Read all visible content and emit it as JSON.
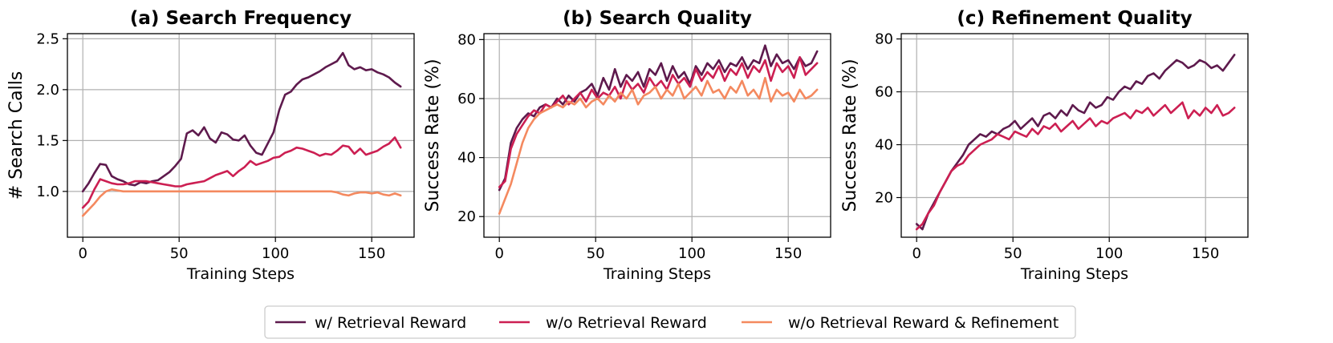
{
  "colors": {
    "w_retrieval": "#5e1a4d",
    "wo_retrieval": "#cc1f52",
    "wo_retrieval_refinement": "#f4895f"
  },
  "legend": [
    {
      "label": "w/ Retrieval Reward",
      "color": "#5e1a4d"
    },
    {
      "label": "w/o Retrieval Reward",
      "color": "#cc1f52"
    },
    {
      "label": "w/o Retrieval Reward & Refinement",
      "color": "#f4895f"
    }
  ],
  "chart_data": [
    {
      "type": "line",
      "title": "(a) Search Frequency",
      "xlabel": "Training Steps",
      "ylabel": "# Search Calls",
      "xlim": [
        -8,
        172
      ],
      "ylim": [
        0.55,
        2.55
      ],
      "xticks": [
        0,
        50,
        100,
        150
      ],
      "yticks": [
        1.0,
        1.5,
        2.0,
        2.5
      ],
      "ytick_labels": [
        "1.0",
        "1.5",
        "2.0",
        "2.5"
      ],
      "grid": true,
      "series": [
        {
          "name": "w/ Retrieval Reward",
          "color": "#5e1a4d",
          "x": [
            0,
            3,
            6,
            9,
            12,
            15,
            18,
            21,
            24,
            27,
            30,
            33,
            36,
            39,
            42,
            45,
            48,
            51,
            54,
            57,
            60,
            63,
            66,
            69,
            72,
            75,
            78,
            81,
            84,
            87,
            90,
            93,
            96,
            99,
            102,
            105,
            108,
            111,
            114,
            117,
            120,
            123,
            126,
            129,
            132,
            135,
            138,
            141,
            144,
            147,
            150,
            153,
            156,
            159,
            162,
            165
          ],
          "y": [
            1.0,
            1.08,
            1.18,
            1.27,
            1.26,
            1.15,
            1.12,
            1.1,
            1.07,
            1.06,
            1.09,
            1.08,
            1.1,
            1.11,
            1.15,
            1.19,
            1.25,
            1.32,
            1.57,
            1.6,
            1.55,
            1.63,
            1.52,
            1.48,
            1.58,
            1.56,
            1.51,
            1.5,
            1.55,
            1.45,
            1.38,
            1.36,
            1.47,
            1.58,
            1.8,
            1.95,
            1.98,
            2.05,
            2.1,
            2.12,
            2.15,
            2.18,
            2.22,
            2.25,
            2.28,
            2.36,
            2.24,
            2.2,
            2.22,
            2.19,
            2.2,
            2.17,
            2.15,
            2.12,
            2.07,
            2.03
          ]
        },
        {
          "name": "w/o Retrieval Reward",
          "color": "#cc1f52",
          "x": [
            0,
            3,
            6,
            9,
            12,
            15,
            18,
            21,
            24,
            27,
            30,
            33,
            36,
            39,
            42,
            45,
            48,
            51,
            54,
            57,
            60,
            63,
            66,
            69,
            72,
            75,
            78,
            81,
            84,
            87,
            90,
            93,
            96,
            99,
            102,
            105,
            108,
            111,
            114,
            117,
            120,
            123,
            126,
            129,
            132,
            135,
            138,
            141,
            144,
            147,
            150,
            153,
            156,
            159,
            162,
            165
          ],
          "y": [
            0.84,
            0.9,
            1.02,
            1.12,
            1.1,
            1.08,
            1.07,
            1.07,
            1.08,
            1.1,
            1.1,
            1.1,
            1.09,
            1.08,
            1.07,
            1.06,
            1.05,
            1.05,
            1.07,
            1.08,
            1.09,
            1.1,
            1.13,
            1.16,
            1.18,
            1.2,
            1.15,
            1.2,
            1.24,
            1.3,
            1.26,
            1.28,
            1.3,
            1.33,
            1.34,
            1.38,
            1.4,
            1.43,
            1.42,
            1.4,
            1.38,
            1.35,
            1.37,
            1.36,
            1.4,
            1.45,
            1.44,
            1.37,
            1.42,
            1.36,
            1.38,
            1.4,
            1.44,
            1.47,
            1.53,
            1.43
          ]
        },
        {
          "name": "w/o Retrieval Reward & Refinement",
          "color": "#f4895f",
          "x": [
            0,
            3,
            6,
            9,
            12,
            15,
            18,
            21,
            24,
            27,
            30,
            33,
            36,
            39,
            42,
            45,
            48,
            51,
            54,
            57,
            60,
            63,
            66,
            69,
            72,
            75,
            78,
            81,
            84,
            87,
            90,
            93,
            96,
            99,
            102,
            105,
            108,
            111,
            114,
            117,
            120,
            123,
            126,
            129,
            132,
            135,
            138,
            141,
            144,
            147,
            150,
            153,
            156,
            159,
            162,
            165
          ],
          "y": [
            0.76,
            0.82,
            0.88,
            0.95,
            1.0,
            1.02,
            1.01,
            1.0,
            1.0,
            1.0,
            1.0,
            1.0,
            1.0,
            1.0,
            1.0,
            1.0,
            1.0,
            1.0,
            1.0,
            1.0,
            1.0,
            1.0,
            1.0,
            1.0,
            1.0,
            1.0,
            1.0,
            1.0,
            1.0,
            1.0,
            1.0,
            1.0,
            1.0,
            1.0,
            1.0,
            1.0,
            1.0,
            1.0,
            1.0,
            1.0,
            1.0,
            1.0,
            1.0,
            1.0,
            0.99,
            0.97,
            0.96,
            0.98,
            0.99,
            0.99,
            0.98,
            0.99,
            0.97,
            0.96,
            0.98,
            0.96
          ]
        }
      ]
    },
    {
      "type": "line",
      "title": "(b) Search Quality",
      "xlabel": "Training Steps",
      "ylabel": "Success Rate (%)",
      "xlim": [
        -8,
        172
      ],
      "ylim": [
        13,
        82
      ],
      "xticks": [
        0,
        50,
        100,
        150
      ],
      "yticks": [
        20,
        40,
        60,
        80
      ],
      "ytick_labels": [
        "20",
        "40",
        "60",
        "80"
      ],
      "grid": true,
      "series": [
        {
          "name": "w/ Retrieval Reward",
          "color": "#5e1a4d",
          "x": [
            0,
            3,
            6,
            9,
            12,
            15,
            18,
            21,
            24,
            27,
            30,
            33,
            36,
            39,
            42,
            45,
            48,
            51,
            54,
            57,
            60,
            63,
            66,
            69,
            72,
            75,
            78,
            81,
            84,
            87,
            90,
            93,
            96,
            99,
            102,
            105,
            108,
            111,
            114,
            117,
            120,
            123,
            126,
            129,
            132,
            135,
            138,
            141,
            144,
            147,
            150,
            153,
            156,
            159,
            162,
            165
          ],
          "y": [
            29,
            33,
            45,
            50,
            53,
            55,
            54,
            57,
            58,
            57,
            60,
            58,
            61,
            59,
            62,
            63,
            65,
            61,
            67,
            63,
            70,
            64,
            68,
            66,
            69,
            64,
            70,
            68,
            72,
            66,
            71,
            67,
            69,
            65,
            71,
            68,
            72,
            70,
            73,
            69,
            72,
            71,
            74,
            70,
            73,
            72,
            78,
            71,
            75,
            72,
            73,
            70,
            74,
            71,
            72,
            76
          ]
        },
        {
          "name": "w/o Retrieval Reward",
          "color": "#cc1f52",
          "x": [
            0,
            3,
            6,
            9,
            12,
            15,
            18,
            21,
            24,
            27,
            30,
            33,
            36,
            39,
            42,
            45,
            48,
            51,
            54,
            57,
            60,
            63,
            66,
            69,
            72,
            75,
            78,
            81,
            84,
            87,
            90,
            93,
            96,
            99,
            102,
            105,
            108,
            111,
            114,
            117,
            120,
            123,
            126,
            129,
            132,
            135,
            138,
            141,
            144,
            147,
            150,
            153,
            156,
            159,
            162,
            165
          ],
          "y": [
            30,
            32,
            43,
            48,
            51,
            54,
            56,
            55,
            58,
            57,
            59,
            61,
            58,
            60,
            62,
            59,
            63,
            60,
            62,
            61,
            64,
            60,
            66,
            63,
            65,
            62,
            67,
            64,
            66,
            63,
            68,
            65,
            67,
            64,
            70,
            66,
            69,
            67,
            71,
            66,
            70,
            68,
            72,
            67,
            71,
            69,
            73,
            66,
            72,
            69,
            71,
            67,
            74,
            68,
            70,
            72
          ]
        },
        {
          "name": "w/o Retrieval Reward & Refinement",
          "color": "#f4895f",
          "x": [
            0,
            3,
            6,
            9,
            12,
            15,
            18,
            21,
            24,
            27,
            30,
            33,
            36,
            39,
            42,
            45,
            48,
            51,
            54,
            57,
            60,
            63,
            66,
            69,
            72,
            75,
            78,
            81,
            84,
            87,
            90,
            93,
            96,
            99,
            102,
            105,
            108,
            111,
            114,
            117,
            120,
            123,
            126,
            129,
            132,
            135,
            138,
            141,
            144,
            147,
            150,
            153,
            156,
            159,
            162,
            165
          ],
          "y": [
            21,
            26,
            31,
            38,
            45,
            50,
            53,
            55,
            56,
            57,
            58,
            57,
            59,
            58,
            60,
            57,
            59,
            60,
            58,
            61,
            59,
            62,
            60,
            63,
            58,
            61,
            62,
            64,
            60,
            63,
            61,
            65,
            60,
            62,
            64,
            61,
            66,
            62,
            63,
            60,
            64,
            62,
            66,
            61,
            63,
            60,
            67,
            59,
            63,
            61,
            62,
            59,
            63,
            60,
            61,
            63
          ]
        }
      ]
    },
    {
      "type": "line",
      "title": "(c) Refinement Quality",
      "xlabel": "Training Steps",
      "ylabel": "Success Rate (%)",
      "xlim": [
        -8,
        172
      ],
      "ylim": [
        5,
        82
      ],
      "xticks": [
        0,
        50,
        100,
        150
      ],
      "yticks": [
        20,
        40,
        60,
        80
      ],
      "ytick_labels": [
        "20",
        "40",
        "60",
        "80"
      ],
      "grid": true,
      "series": [
        {
          "name": "w/ Retrieval Reward",
          "color": "#5e1a4d",
          "x": [
            0,
            3,
            6,
            9,
            12,
            15,
            18,
            21,
            24,
            27,
            30,
            33,
            36,
            39,
            42,
            45,
            48,
            51,
            54,
            57,
            60,
            63,
            66,
            69,
            72,
            75,
            78,
            81,
            84,
            87,
            90,
            93,
            96,
            99,
            102,
            105,
            108,
            111,
            114,
            117,
            120,
            123,
            126,
            129,
            132,
            135,
            138,
            141,
            144,
            147,
            150,
            153,
            156,
            159,
            162,
            165
          ],
          "y": [
            10,
            8,
            14,
            18,
            22,
            26,
            30,
            33,
            36,
            40,
            42,
            44,
            43,
            45,
            44,
            46,
            47,
            49,
            46,
            48,
            50,
            47,
            51,
            52,
            50,
            53,
            51,
            55,
            53,
            52,
            56,
            54,
            55,
            58,
            57,
            60,
            62,
            61,
            64,
            63,
            66,
            67,
            65,
            68,
            70,
            72,
            71,
            69,
            70,
            72,
            71,
            69,
            70,
            68,
            71,
            74
          ]
        },
        {
          "name": "w/o Retrieval Reward",
          "color": "#cc1f52",
          "x": [
            0,
            3,
            6,
            9,
            12,
            15,
            18,
            21,
            24,
            27,
            30,
            33,
            36,
            39,
            42,
            45,
            48,
            51,
            54,
            57,
            60,
            63,
            66,
            69,
            72,
            75,
            78,
            81,
            84,
            87,
            90,
            93,
            96,
            99,
            102,
            105,
            108,
            111,
            114,
            117,
            120,
            123,
            126,
            129,
            132,
            135,
            138,
            141,
            144,
            147,
            150,
            153,
            156,
            159,
            162,
            165
          ],
          "y": [
            8,
            10,
            14,
            17,
            22,
            26,
            30,
            32,
            33,
            36,
            38,
            40,
            41,
            42,
            44,
            43,
            42,
            45,
            44,
            43,
            46,
            44,
            47,
            46,
            48,
            45,
            47,
            49,
            46,
            48,
            50,
            47,
            49,
            48,
            50,
            51,
            52,
            50,
            53,
            52,
            54,
            51,
            53,
            55,
            52,
            54,
            56,
            50,
            53,
            51,
            54,
            52,
            55,
            51,
            52,
            54
          ]
        }
      ]
    }
  ]
}
